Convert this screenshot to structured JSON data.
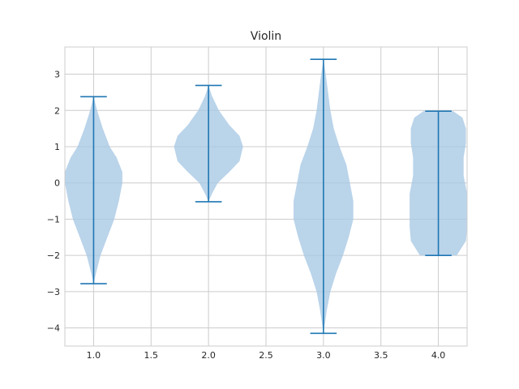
{
  "chart_data": {
    "type": "violin",
    "title": "Violin",
    "xlabel": "",
    "ylabel": "",
    "xlim": [
      0.75,
      4.25
    ],
    "ylim": [
      -4.5,
      3.75
    ],
    "xticks": [
      "1.0",
      "1.5",
      "2.0",
      "2.5",
      "3.0",
      "3.5",
      "4.0"
    ],
    "yticks": [
      "−4",
      "−3",
      "−2",
      "−1",
      "0",
      "1",
      "2",
      "3"
    ],
    "grid": true,
    "colors": {
      "body": "#a6c8e4",
      "line": "#1f77b4",
      "grid": "#cccccc",
      "text": "#262626"
    },
    "violins": [
      {
        "position": 1.0,
        "min": -2.78,
        "max": 2.38,
        "profile": [
          [
            -2.78,
            0.0
          ],
          [
            -2.5,
            0.02
          ],
          [
            -2.0,
            0.06
          ],
          [
            -1.5,
            0.12
          ],
          [
            -1.0,
            0.18
          ],
          [
            -0.5,
            0.22
          ],
          [
            0.0,
            0.25
          ],
          [
            0.3,
            0.25
          ],
          [
            0.7,
            0.2
          ],
          [
            1.0,
            0.14
          ],
          [
            1.5,
            0.08
          ],
          [
            2.0,
            0.03
          ],
          [
            2.38,
            0.0
          ]
        ]
      },
      {
        "position": 2.0,
        "min": -0.52,
        "max": 2.69,
        "profile": [
          [
            -0.52,
            0.0
          ],
          [
            -0.3,
            0.03
          ],
          [
            0.0,
            0.08
          ],
          [
            0.3,
            0.18
          ],
          [
            0.6,
            0.27
          ],
          [
            1.0,
            0.3
          ],
          [
            1.3,
            0.27
          ],
          [
            1.6,
            0.18
          ],
          [
            2.0,
            0.09
          ],
          [
            2.4,
            0.03
          ],
          [
            2.69,
            0.0
          ]
        ]
      },
      {
        "position": 3.0,
        "min": -4.15,
        "max": 3.41,
        "profile": [
          [
            -4.15,
            0.0
          ],
          [
            -3.5,
            0.03
          ],
          [
            -3.0,
            0.06
          ],
          [
            -2.5,
            0.11
          ],
          [
            -2.0,
            0.17
          ],
          [
            -1.5,
            0.22
          ],
          [
            -1.0,
            0.26
          ],
          [
            -0.5,
            0.26
          ],
          [
            0.0,
            0.23
          ],
          [
            0.5,
            0.2
          ],
          [
            1.0,
            0.14
          ],
          [
            1.5,
            0.09
          ],
          [
            2.0,
            0.06
          ],
          [
            2.5,
            0.04
          ],
          [
            3.0,
            0.02
          ],
          [
            3.41,
            0.0
          ]
        ]
      },
      {
        "position": 4.0,
        "min": -2.0,
        "max": 1.98,
        "profile": [
          [
            -2.0,
            0.16
          ],
          [
            -1.6,
            0.24
          ],
          [
            -1.2,
            0.25
          ],
          [
            -0.8,
            0.25
          ],
          [
            -0.3,
            0.25
          ],
          [
            0.2,
            0.22
          ],
          [
            0.7,
            0.22
          ],
          [
            1.1,
            0.24
          ],
          [
            1.5,
            0.24
          ],
          [
            1.8,
            0.21
          ],
          [
            1.98,
            0.13
          ]
        ]
      }
    ]
  }
}
